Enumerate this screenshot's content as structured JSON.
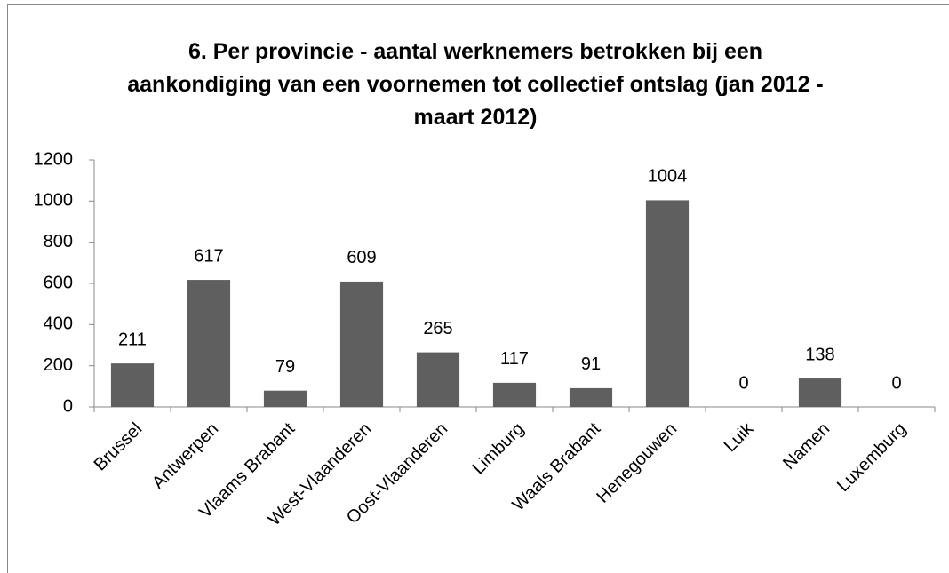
{
  "chart_data": {
    "type": "bar",
    "title": "6. Per provincie - aantal werknemers betrokken bij een aankondiging  van een voornemen tot collectief ontslag (jan 2012 - maart 2012)",
    "categories": [
      "Brussel",
      "Antwerpen",
      "Vlaams Brabant",
      "West-Vlaanderen",
      "Oost-Vlaanderen",
      "Limburg",
      "Waals Brabant",
      "Henegouwen",
      "Luik",
      "Namen",
      "Luxemburg"
    ],
    "values": [
      211,
      617,
      79,
      609,
      265,
      117,
      91,
      1004,
      0,
      138,
      0
    ],
    "color": "#5f5f5f",
    "ylim": [
      0,
      1200
    ],
    "yticks": [
      0,
      200,
      400,
      600,
      800,
      1000,
      1200
    ],
    "grid": false
  }
}
